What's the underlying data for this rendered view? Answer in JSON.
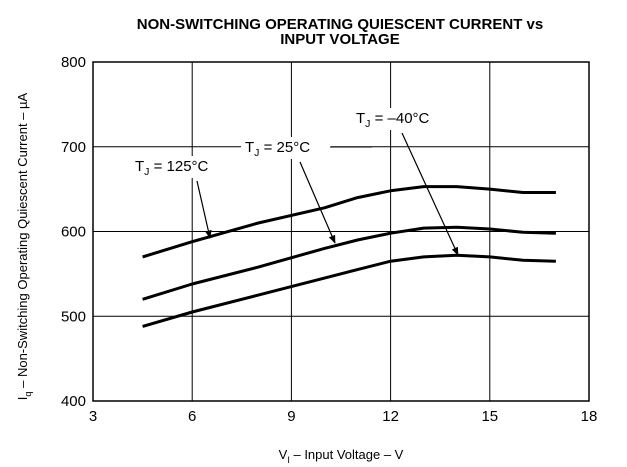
{
  "chart_data": {
    "type": "line",
    "title": [
      "NON-SWITCHING OPERATING QUIESCENT CURRENT vs",
      "INPUT VOLTAGE"
    ],
    "x_label": {
      "symbol": "V",
      "subscript": "I",
      "text": " – Input Voltage – V"
    },
    "y_label": {
      "symbol": "I",
      "subscript": "q",
      "text": " – Non-Switching Operating Quiescent Current – µA"
    },
    "x": [
      4.5,
      6,
      8,
      10,
      11,
      12,
      13,
      14,
      15,
      16,
      17
    ],
    "series": [
      {
        "color": "#000000",
        "values": [
          570,
          588,
          610,
          628,
          640,
          648,
          653,
          653,
          650,
          646,
          646
        ]
      },
      {
        "color": "#000000",
        "values": [
          520,
          538,
          558,
          580,
          590,
          598,
          604,
          605,
          603,
          599,
          598
        ]
      },
      {
        "color": "#000000",
        "values": [
          488,
          505,
          525,
          545,
          555,
          565,
          570,
          572,
          570,
          566,
          565
        ]
      }
    ],
    "annotations": [
      {
        "symbol": "T",
        "subscript": "J",
        "text": " = 125°C"
      },
      {
        "symbol": "T",
        "subscript": "J",
        "text": " = 25°C"
      },
      {
        "symbol": "T",
        "subscript": "J",
        "text": " = –40°C"
      }
    ],
    "xlim": [
      3,
      18
    ],
    "xticks": [
      3,
      6,
      9,
      12,
      15,
      18
    ],
    "ylim": [
      400,
      800
    ],
    "yticks": [
      400,
      500,
      600,
      700,
      800
    ],
    "grid": true
  }
}
